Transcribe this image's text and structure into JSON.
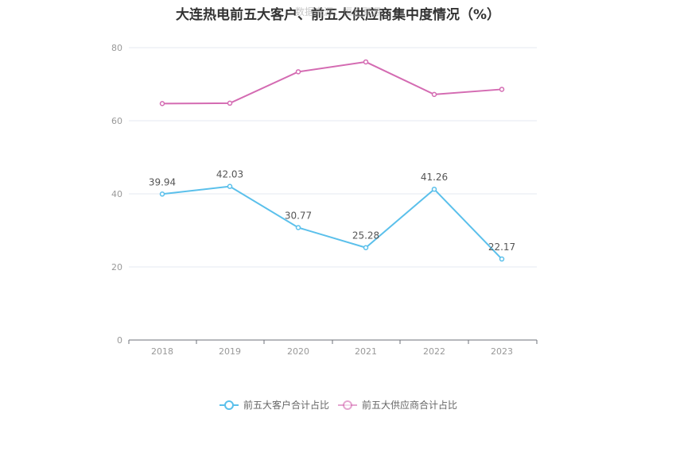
{
  "chart_data": {
    "type": "line",
    "title": "大连热电前五大客户、前五大供应商集中度情况（%）",
    "watermark": "数据来源：恒生聚源",
    "categories": [
      "2018",
      "2019",
      "2020",
      "2021",
      "2022",
      "2023"
    ],
    "ylim": [
      0,
      80
    ],
    "yticks": [
      0,
      20,
      40,
      60,
      80
    ],
    "grid": true,
    "legend_position": "bottom",
    "series": [
      {
        "name": "前五大客户合计占比",
        "values": [
          39.94,
          42.03,
          30.77,
          25.28,
          41.26,
          22.17
        ],
        "color": "#5bc0eb",
        "show_labels": true
      },
      {
        "name": "前五大供应商合计占比",
        "values": [
          64.7,
          64.8,
          73.4,
          76.1,
          67.2,
          68.6
        ],
        "color": "#d46bb2",
        "show_labels": false
      }
    ]
  }
}
